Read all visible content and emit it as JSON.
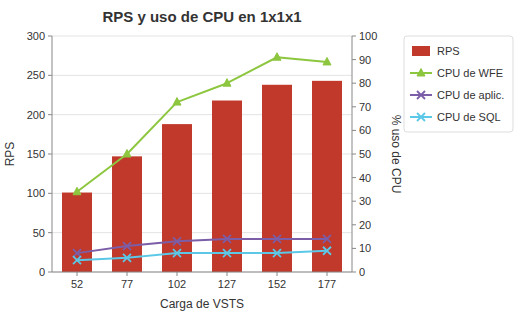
{
  "chart_data": {
    "type": "bar",
    "title": "RPS y uso de CPU en 1x1x1",
    "xlabel": "Carga de VSTS",
    "ylabel": "RPS",
    "y2label": "% uso de CPU",
    "categories": [
      52,
      77,
      102,
      127,
      152,
      177
    ],
    "series": [
      {
        "name": "RPS",
        "type": "bar",
        "color": "#c0392b",
        "values": [
          101,
          147,
          188,
          218,
          238,
          243
        ]
      },
      {
        "name": "CPU de WFE",
        "type": "line",
        "axis": "y2",
        "color": "#8dc63f",
        "marker": "triangle",
        "values": [
          34,
          50,
          72,
          80,
          91,
          89
        ]
      },
      {
        "name": "CPU de aplic.",
        "type": "line",
        "axis": "y2",
        "color": "#7b5ea7",
        "marker": "x",
        "values": [
          8,
          11,
          13,
          14,
          14,
          14
        ]
      },
      {
        "name": "CPU de SQL",
        "type": "line",
        "axis": "y2",
        "color": "#5bc8e8",
        "marker": "x",
        "values": [
          5,
          6,
          8,
          8,
          8,
          9
        ]
      }
    ],
    "ylim": [
      0,
      300
    ],
    "yticks": [
      0,
      50,
      100,
      150,
      200,
      250,
      300
    ],
    "y2lim": [
      0,
      100
    ],
    "y2ticks": [
      0,
      10,
      20,
      30,
      40,
      50,
      60,
      70,
      80,
      90,
      100
    ],
    "grid": true,
    "legend": "right"
  }
}
